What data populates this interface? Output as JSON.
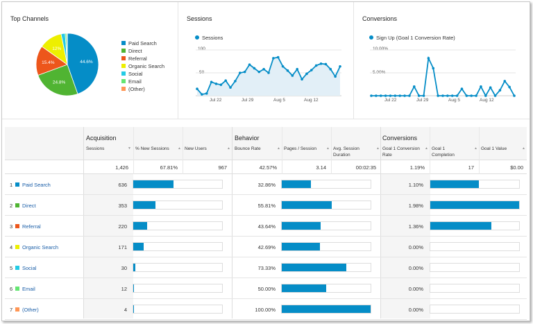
{
  "colors": {
    "accent": "#058dc7",
    "paid_search": "#058dc7",
    "direct": "#50b432",
    "referral": "#ed561b",
    "organic_search": "#edef00",
    "social": "#24cbe5",
    "email": "#64e572",
    "other": "#ff9655"
  },
  "top_channels": {
    "title": "Top Channels",
    "pie": {
      "slices": [
        {
          "name": "Paid Search",
          "value": 44.6,
          "label": "44.6%"
        },
        {
          "name": "Direct",
          "value": 24.8,
          "label": "24.8%"
        },
        {
          "name": "Referral",
          "value": 15.4,
          "label": "15.4%"
        },
        {
          "name": "Organic Search",
          "value": 12.0,
          "label": "12%"
        },
        {
          "name": "Social",
          "value": 2.1,
          "label": ""
        },
        {
          "name": "Email",
          "value": 0.8,
          "label": ""
        },
        {
          "name": "(Other)",
          "value": 0.3,
          "label": ""
        }
      ]
    },
    "legend": [
      "Paid Search",
      "Direct",
      "Referral",
      "Organic Search",
      "Social",
      "Email",
      "(Other)"
    ]
  },
  "sessions_chart": {
    "title": "Sessions",
    "series_label": "Sessions",
    "y_ticks": [
      "100",
      "50"
    ],
    "x_ticks": [
      "Jul 22",
      "Jul 29",
      "Aug 5",
      "Aug 12"
    ],
    "chart_data": {
      "type": "area",
      "ylim": [
        0,
        100
      ],
      "x_ticks": [
        "Jul 22",
        "Jul 29",
        "Aug 5",
        "Aug 12"
      ],
      "series": [
        {
          "name": "Sessions",
          "values": [
            15,
            3,
            5,
            30,
            26,
            24,
            33,
            18,
            32,
            50,
            52,
            68,
            60,
            52,
            58,
            50,
            82,
            84,
            64,
            55,
            44,
            58,
            36,
            48,
            56,
            66,
            70,
            69,
            58,
            42,
            64
          ]
        }
      ]
    }
  },
  "conversions_chart": {
    "title": "Conversions",
    "series_label": "Sign Up (Goal 1 Conversion Rate)",
    "y_ticks": [
      "10.00%",
      "5.00%"
    ],
    "x_ticks": [
      "Jul 22",
      "Jul 29",
      "Aug 5",
      "Aug 12"
    ],
    "chart_data": {
      "type": "line",
      "ylim": [
        0,
        10
      ],
      "x_ticks": [
        "Jul 22",
        "Jul 29",
        "Aug 5",
        "Aug 12"
      ],
      "series": [
        {
          "name": "Sign Up (Goal 1 Conversion Rate)",
          "values": [
            0,
            0,
            0,
            0,
            0,
            0,
            0,
            0,
            0,
            2.0,
            0,
            0,
            8.2,
            6.0,
            0,
            0,
            0,
            0,
            0,
            1.5,
            0,
            0,
            0,
            2.0,
            0,
            1.8,
            0,
            1.2,
            3.2,
            1.9,
            0
          ]
        }
      ]
    }
  },
  "table": {
    "groups": {
      "acquisition": "Acquisition",
      "behavior": "Behavior",
      "conversions": "Conversions"
    },
    "headers": {
      "sessions": "Sessions",
      "pct_new": "% New Sessions",
      "new_users": "New Users",
      "bounce": "Bounce Rate",
      "pages": "Pages / Session",
      "avg_dur": "Avg. Session Duration",
      "conv_rate": "Goal 1 Conversion Rate",
      "completion": "Goal 1 Completion",
      "goal_value": "Goal 1 Value"
    },
    "totals": {
      "sessions": "1,426",
      "pct_new": "67.81%",
      "new_users": "967",
      "bounce": "42.57%",
      "pages": "3.14",
      "avg_dur": "00:02:35",
      "conv_rate": "1.19%",
      "completion": "17",
      "goal_value": "$0.00"
    },
    "rows": [
      {
        "index": "1",
        "channel": "Paid Search",
        "color": "#058dc7",
        "sessions": "636",
        "new_pct": 45,
        "bounce": "32.86%",
        "pages_pct": 33,
        "conv_rate": "1.10%",
        "comp_pct": 55
      },
      {
        "index": "2",
        "channel": "Direct",
        "color": "#50b432",
        "sessions": "353",
        "new_pct": 25,
        "bounce": "55.81%",
        "pages_pct": 56,
        "conv_rate": "1.98%",
        "comp_pct": 100
      },
      {
        "index": "3",
        "channel": "Referral",
        "color": "#ed561b",
        "sessions": "220",
        "new_pct": 16,
        "bounce": "43.64%",
        "pages_pct": 44,
        "conv_rate": "1.36%",
        "comp_pct": 69
      },
      {
        "index": "4",
        "channel": "Organic Search",
        "color": "#edef00",
        "sessions": "171",
        "new_pct": 12,
        "bounce": "42.69%",
        "pages_pct": 43,
        "conv_rate": "0.00%",
        "comp_pct": 0
      },
      {
        "index": "5",
        "channel": "Social",
        "color": "#24cbe5",
        "sessions": "30",
        "new_pct": 2,
        "bounce": "73.33%",
        "pages_pct": 73,
        "conv_rate": "0.00%",
        "comp_pct": 0
      },
      {
        "index": "6",
        "channel": "Email",
        "color": "#64e572",
        "sessions": "12",
        "new_pct": 1,
        "bounce": "50.00%",
        "pages_pct": 50,
        "conv_rate": "0.00%",
        "comp_pct": 0
      },
      {
        "index": "7",
        "channel": "(Other)",
        "color": "#ff9655",
        "sessions": "4",
        "new_pct": 0.5,
        "bounce": "100.00%",
        "pages_pct": 100,
        "conv_rate": "0.00%",
        "comp_pct": 0
      }
    ]
  }
}
